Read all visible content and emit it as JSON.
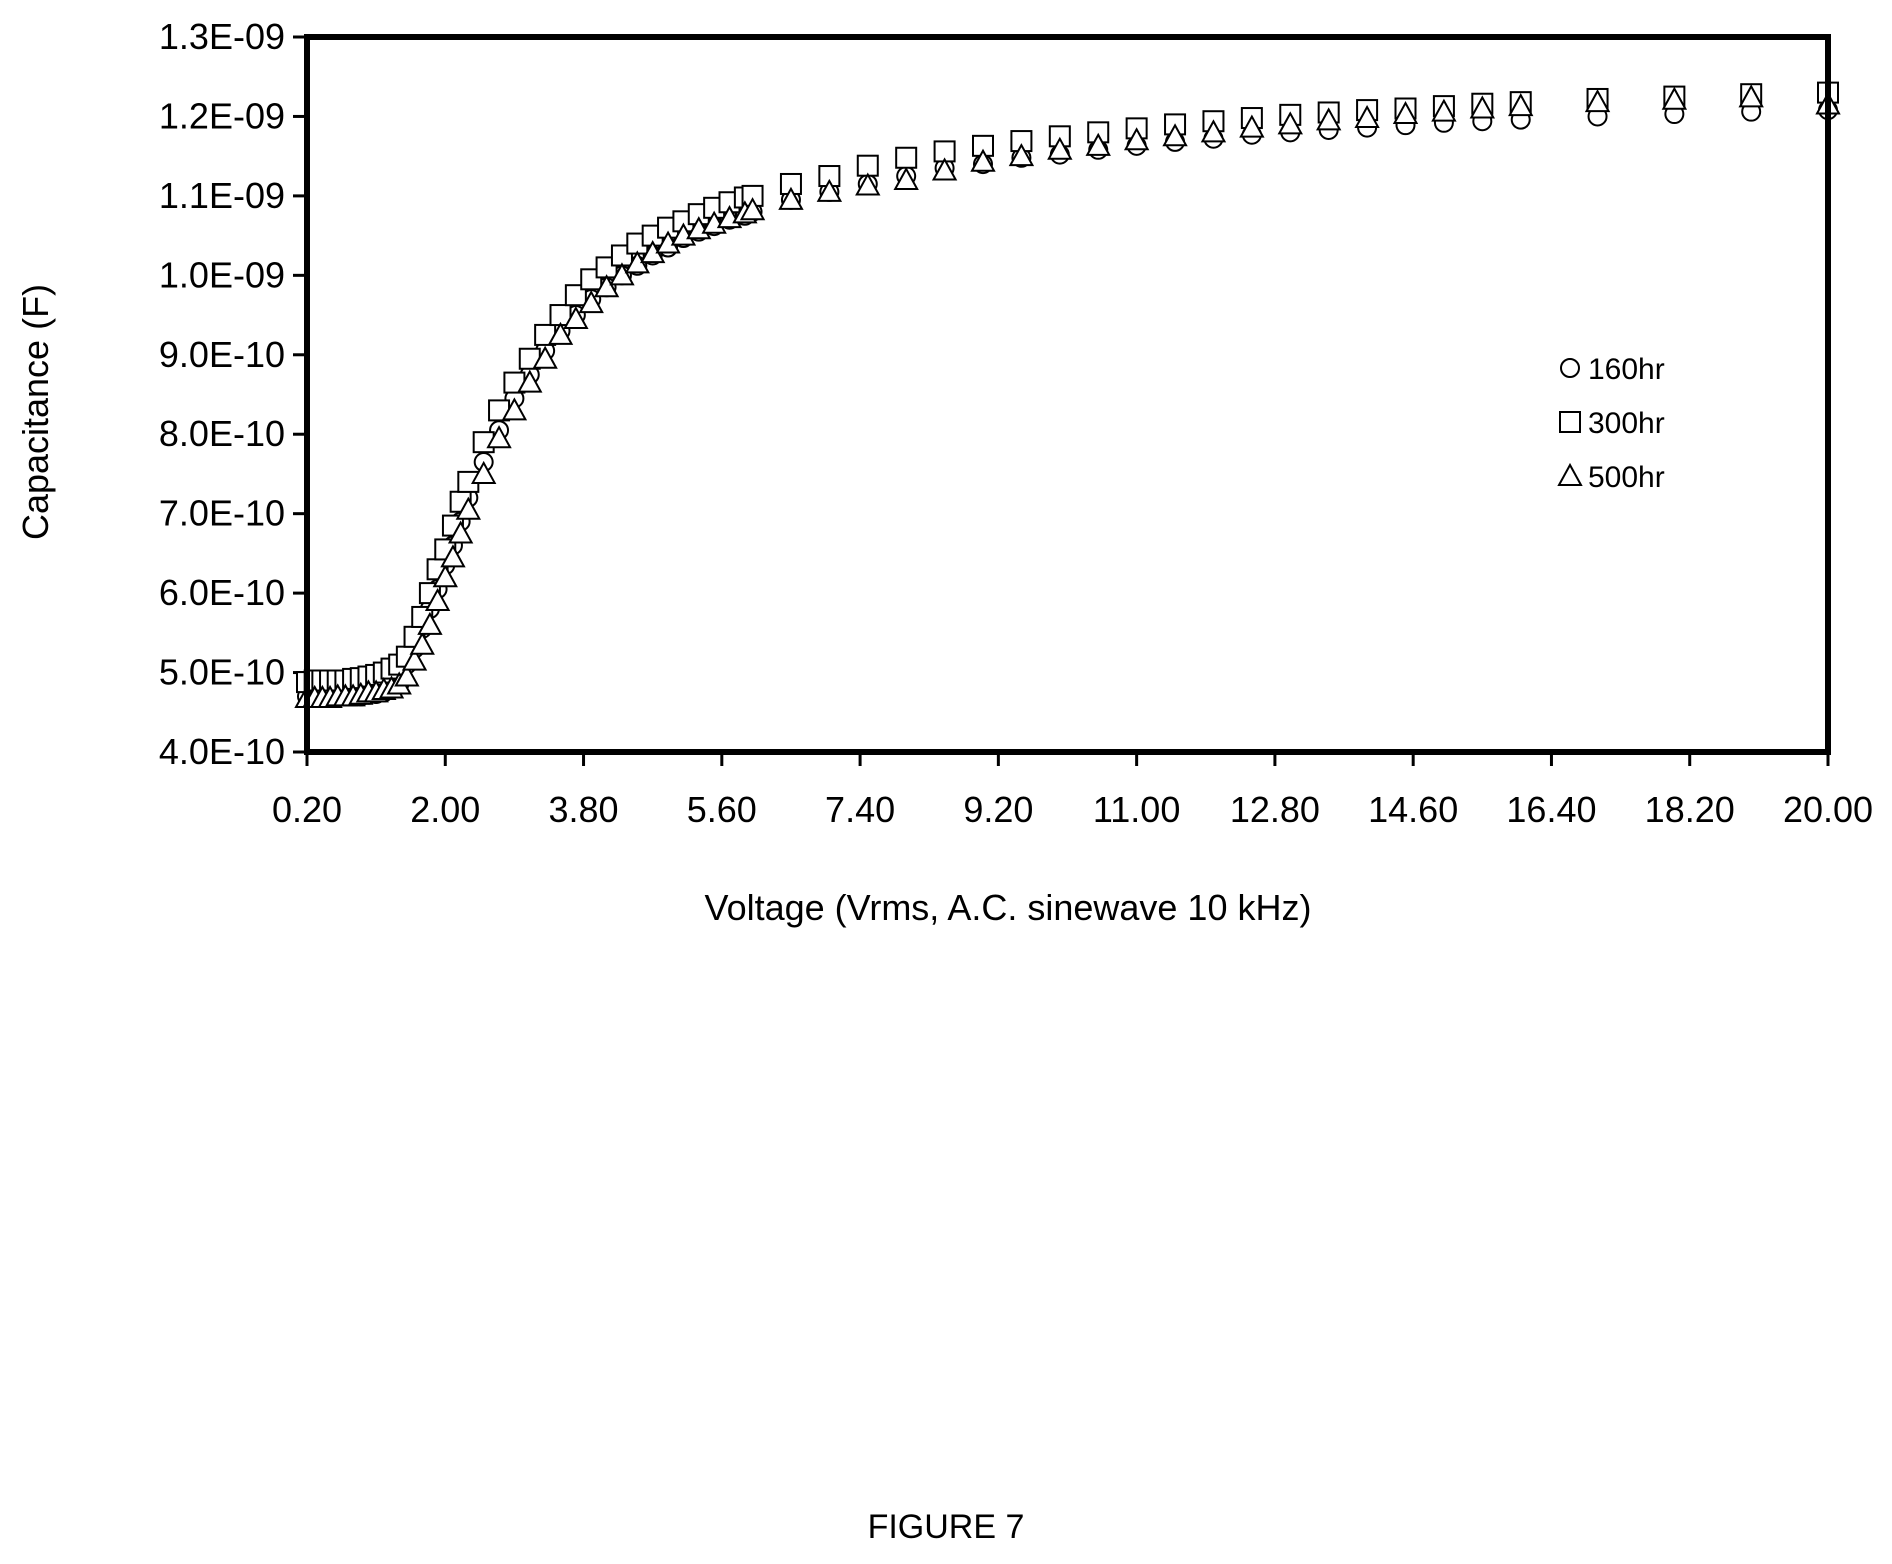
{
  "figure_caption": "FIGURE 7",
  "chart_data": {
    "type": "scatter",
    "title": "",
    "xlabel": "Voltage (Vrms, A.C. sinewave 10 kHz)",
    "ylabel": "Capacitance (F)",
    "xlim": [
      0.2,
      20.0
    ],
    "ylim": [
      4e-10,
      1.3e-09
    ],
    "x_ticks": [
      "0.20",
      "2.00",
      "3.80",
      "5.60",
      "7.40",
      "9.20",
      "11.00",
      "12.80",
      "14.60",
      "16.40",
      "18.20",
      "20.00"
    ],
    "y_ticks": [
      "4.0E-10",
      "5.0E-10",
      "6.0E-10",
      "7.0E-10",
      "8.0E-10",
      "9.0E-10",
      "1.0E-09",
      "1.1E-09",
      "1.2E-09",
      "1.3E-09"
    ],
    "grid": false,
    "legend_position": "right",
    "marker_fill": "#ffffff",
    "marker_stroke": "#000000",
    "series": [
      {
        "name": "160hr",
        "marker": "circle",
        "points": [
          [
            0.2,
            4.7e-10
          ],
          [
            0.3,
            4.7e-10
          ],
          [
            0.4,
            4.7e-10
          ],
          [
            0.5,
            4.7e-10
          ],
          [
            0.6,
            4.7e-10
          ],
          [
            0.7,
            4.7e-10
          ],
          [
            0.8,
            4.7e-10
          ],
          [
            0.9,
            4.7e-10
          ],
          [
            1.0,
            4.72e-10
          ],
          [
            1.1,
            4.73e-10
          ],
          [
            1.2,
            4.75e-10
          ],
          [
            1.3,
            4.8e-10
          ],
          [
            1.4,
            4.85e-10
          ],
          [
            1.5,
            5.1e-10
          ],
          [
            1.6,
            5.3e-10
          ],
          [
            1.7,
            5.55e-10
          ],
          [
            1.8,
            5.8e-10
          ],
          [
            1.9,
            6.05e-10
          ],
          [
            2.0,
            6.35e-10
          ],
          [
            2.1,
            6.6e-10
          ],
          [
            2.2,
            6.9e-10
          ],
          [
            2.3,
            7.2e-10
          ],
          [
            2.5,
            7.65e-10
          ],
          [
            2.7,
            8.05e-10
          ],
          [
            2.9,
            8.45e-10
          ],
          [
            3.1,
            8.75e-10
          ],
          [
            3.3,
            9.05e-10
          ],
          [
            3.5,
            9.3e-10
          ],
          [
            3.7,
            9.5e-10
          ],
          [
            3.9,
            9.7e-10
          ],
          [
            4.1,
            9.85e-10
          ],
          [
            4.3,
            1e-09
          ],
          [
            4.5,
            1.012e-09
          ],
          [
            4.7,
            1.025e-09
          ],
          [
            4.9,
            1.035e-09
          ],
          [
            5.1,
            1.047e-09
          ],
          [
            5.3,
            1.055e-09
          ],
          [
            5.5,
            1.062e-09
          ],
          [
            5.7,
            1.07e-09
          ],
          [
            5.9,
            1.075e-09
          ],
          [
            6.0,
            1.08e-09
          ],
          [
            6.5,
            1.095e-09
          ],
          [
            7.0,
            1.105e-09
          ],
          [
            7.5,
            1.115e-09
          ],
          [
            8.0,
            1.125e-09
          ],
          [
            8.5,
            1.135e-09
          ],
          [
            9.0,
            1.14e-09
          ],
          [
            9.5,
            1.148e-09
          ],
          [
            10.0,
            1.152e-09
          ],
          [
            10.5,
            1.158e-09
          ],
          [
            11.0,
            1.163e-09
          ],
          [
            11.5,
            1.168e-09
          ],
          [
            12.0,
            1.172e-09
          ],
          [
            12.5,
            1.177e-09
          ],
          [
            13.0,
            1.18e-09
          ],
          [
            13.5,
            1.183e-09
          ],
          [
            14.0,
            1.186e-09
          ],
          [
            14.5,
            1.189e-09
          ],
          [
            15.0,
            1.192e-09
          ],
          [
            15.5,
            1.194e-09
          ],
          [
            16.0,
            1.196e-09
          ],
          [
            17.0,
            1.2e-09
          ],
          [
            18.0,
            1.203e-09
          ],
          [
            19.0,
            1.206e-09
          ],
          [
            20.0,
            1.208e-09
          ]
        ]
      },
      {
        "name": "300hr",
        "marker": "square",
        "points": [
          [
            0.2,
            4.88e-10
          ],
          [
            0.3,
            4.9e-10
          ],
          [
            0.4,
            4.9e-10
          ],
          [
            0.5,
            4.9e-10
          ],
          [
            0.6,
            4.9e-10
          ],
          [
            0.7,
            4.9e-10
          ],
          [
            0.8,
            4.92e-10
          ],
          [
            0.9,
            4.93e-10
          ],
          [
            1.0,
            4.95e-10
          ],
          [
            1.1,
            4.97e-10
          ],
          [
            1.2,
            5e-10
          ],
          [
            1.3,
            5.05e-10
          ],
          [
            1.4,
            5.1e-10
          ],
          [
            1.5,
            5.2e-10
          ],
          [
            1.6,
            5.45e-10
          ],
          [
            1.7,
            5.7e-10
          ],
          [
            1.8,
            6e-10
          ],
          [
            1.9,
            6.3e-10
          ],
          [
            2.0,
            6.55e-10
          ],
          [
            2.1,
            6.85e-10
          ],
          [
            2.2,
            7.15e-10
          ],
          [
            2.3,
            7.4e-10
          ],
          [
            2.5,
            7.9e-10
          ],
          [
            2.7,
            8.3e-10
          ],
          [
            2.9,
            8.65e-10
          ],
          [
            3.1,
            8.95e-10
          ],
          [
            3.3,
            9.25e-10
          ],
          [
            3.5,
            9.5e-10
          ],
          [
            3.7,
            9.75e-10
          ],
          [
            3.9,
            9.95e-10
          ],
          [
            4.1,
            1.01e-09
          ],
          [
            4.3,
            1.025e-09
          ],
          [
            4.5,
            1.04e-09
          ],
          [
            4.7,
            1.05e-09
          ],
          [
            4.9,
            1.06e-09
          ],
          [
            5.1,
            1.068e-09
          ],
          [
            5.3,
            1.077e-09
          ],
          [
            5.5,
            1.085e-09
          ],
          [
            5.7,
            1.092e-09
          ],
          [
            5.9,
            1.098e-09
          ],
          [
            6.0,
            1.1e-09
          ],
          [
            6.5,
            1.115e-09
          ],
          [
            7.0,
            1.125e-09
          ],
          [
            7.5,
            1.138e-09
          ],
          [
            8.0,
            1.148e-09
          ],
          [
            8.5,
            1.156e-09
          ],
          [
            9.0,
            1.163e-09
          ],
          [
            9.5,
            1.169e-09
          ],
          [
            10.0,
            1.175e-09
          ],
          [
            10.5,
            1.18e-09
          ],
          [
            11.0,
            1.185e-09
          ],
          [
            11.5,
            1.19e-09
          ],
          [
            12.0,
            1.194e-09
          ],
          [
            12.5,
            1.198e-09
          ],
          [
            13.0,
            1.202e-09
          ],
          [
            13.5,
            1.205e-09
          ],
          [
            14.0,
            1.208e-09
          ],
          [
            14.5,
            1.21e-09
          ],
          [
            15.0,
            1.213e-09
          ],
          [
            15.5,
            1.216e-09
          ],
          [
            16.0,
            1.218e-09
          ],
          [
            17.0,
            1.222e-09
          ],
          [
            18.0,
            1.225e-09
          ],
          [
            19.0,
            1.228e-09
          ],
          [
            20.0,
            1.23e-09
          ]
        ]
      },
      {
        "name": "500hr",
        "marker": "triangle",
        "points": [
          [
            0.2,
            4.68e-10
          ],
          [
            0.3,
            4.68e-10
          ],
          [
            0.4,
            4.68e-10
          ],
          [
            0.5,
            4.68e-10
          ],
          [
            0.6,
            4.7e-10
          ],
          [
            0.7,
            4.7e-10
          ],
          [
            0.8,
            4.7e-10
          ],
          [
            0.9,
            4.72e-10
          ],
          [
            1.0,
            4.75e-10
          ],
          [
            1.1,
            4.75e-10
          ],
          [
            1.2,
            4.78e-10
          ],
          [
            1.3,
            4.8e-10
          ],
          [
            1.4,
            4.85e-10
          ],
          [
            1.5,
            4.95e-10
          ],
          [
            1.6,
            5.15e-10
          ],
          [
            1.7,
            5.35e-10
          ],
          [
            1.8,
            5.6e-10
          ],
          [
            1.9,
            5.9e-10
          ],
          [
            2.0,
            6.2e-10
          ],
          [
            2.1,
            6.45e-10
          ],
          [
            2.2,
            6.75e-10
          ],
          [
            2.3,
            7.05e-10
          ],
          [
            2.5,
            7.5e-10
          ],
          [
            2.7,
            7.95e-10
          ],
          [
            2.9,
            8.3e-10
          ],
          [
            3.1,
            8.65e-10
          ],
          [
            3.3,
            8.95e-10
          ],
          [
            3.5,
            9.25e-10
          ],
          [
            3.7,
            9.45e-10
          ],
          [
            3.9,
            9.65e-10
          ],
          [
            4.1,
            9.85e-10
          ],
          [
            4.3,
            1e-09
          ],
          [
            4.5,
            1.015e-09
          ],
          [
            4.7,
            1.028e-09
          ],
          [
            4.9,
            1.04e-09
          ],
          [
            5.1,
            1.05e-09
          ],
          [
            5.3,
            1.058e-09
          ],
          [
            5.5,
            1.065e-09
          ],
          [
            5.7,
            1.072e-09
          ],
          [
            5.9,
            1.078e-09
          ],
          [
            6.0,
            1.082e-09
          ],
          [
            6.5,
            1.095e-09
          ],
          [
            7.0,
            1.105e-09
          ],
          [
            7.5,
            1.113e-09
          ],
          [
            8.0,
            1.12e-09
          ],
          [
            8.5,
            1.132e-09
          ],
          [
            9.0,
            1.143e-09
          ],
          [
            9.5,
            1.15e-09
          ],
          [
            10.0,
            1.158e-09
          ],
          [
            10.5,
            1.163e-09
          ],
          [
            11.0,
            1.17e-09
          ],
          [
            11.5,
            1.175e-09
          ],
          [
            12.0,
            1.18e-09
          ],
          [
            12.5,
            1.186e-09
          ],
          [
            13.0,
            1.19e-09
          ],
          [
            13.5,
            1.195e-09
          ],
          [
            14.0,
            1.198e-09
          ],
          [
            14.5,
            1.203e-09
          ],
          [
            15.0,
            1.206e-09
          ],
          [
            15.5,
            1.21e-09
          ],
          [
            16.0,
            1.213e-09
          ],
          [
            17.0,
            1.218e-09
          ],
          [
            18.0,
            1.221e-09
          ],
          [
            19.0,
            1.224e-09
          ],
          [
            20.0,
            1.215e-09
          ]
        ]
      }
    ]
  }
}
